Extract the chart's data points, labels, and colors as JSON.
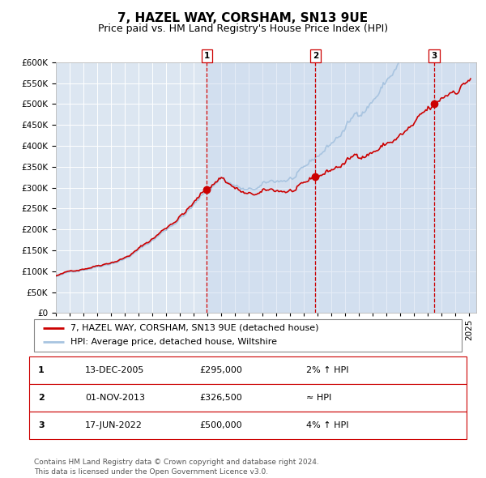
{
  "title": "7, HAZEL WAY, CORSHAM, SN13 9UE",
  "subtitle": "Price paid vs. HM Land Registry's House Price Index (HPI)",
  "background_color": "#ffffff",
  "plot_bg_color": "#dce6f1",
  "grid_color": "#ffffff",
  "hpi_line_color": "#a8c4e0",
  "price_line_color": "#cc0000",
  "sale_marker_color": "#cc0000",
  "dashed_line_color": "#cc0000",
  "shade_color": "#c8d8ee",
  "shade_alpha": 0.45,
  "ylim": [
    0,
    600000
  ],
  "yticks": [
    0,
    50000,
    100000,
    150000,
    200000,
    250000,
    300000,
    350000,
    400000,
    450000,
    500000,
    550000,
    600000
  ],
  "xmin": 1995.0,
  "xmax": 2025.5,
  "sale_dates": [
    2005.958,
    2013.833,
    2022.458
  ],
  "sale_prices": [
    295000,
    326500,
    500000
  ],
  "sale_labels": [
    "1",
    "2",
    "3"
  ],
  "legend_line1": "7, HAZEL WAY, CORSHAM, SN13 9UE (detached house)",
  "legend_line2": "HPI: Average price, detached house, Wiltshire",
  "table_rows": [
    [
      "1",
      "13-DEC-2005",
      "£295,000",
      "2% ↑ HPI"
    ],
    [
      "2",
      "01-NOV-2013",
      "£326,500",
      "≈ HPI"
    ],
    [
      "3",
      "17-JUN-2022",
      "£500,000",
      "4% ↑ HPI"
    ]
  ],
  "footer": "Contains HM Land Registry data © Crown copyright and database right 2024.\nThis data is licensed under the Open Government Licence v3.0.",
  "title_fontsize": 11,
  "subtitle_fontsize": 9,
  "tick_fontsize": 7.5,
  "legend_fontsize": 8,
  "table_fontsize": 8,
  "footer_fontsize": 6.5
}
